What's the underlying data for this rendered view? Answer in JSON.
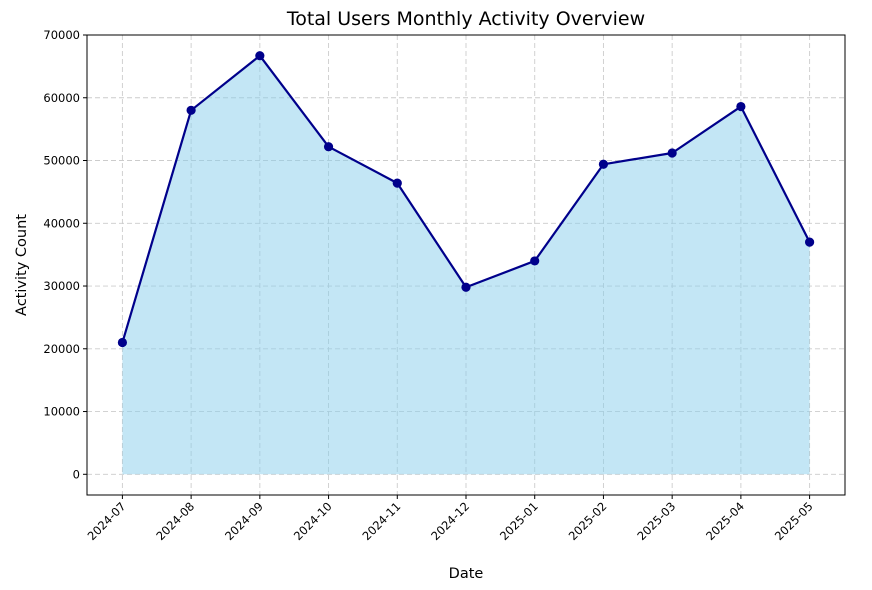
{
  "chart_data": {
    "type": "area",
    "title": "Total Users Monthly Activity Overview",
    "xlabel": "Date",
    "ylabel": "Activity Count",
    "categories": [
      "2024-07",
      "2024-08",
      "2024-09",
      "2024-10",
      "2024-11",
      "2024-12",
      "2025-01",
      "2025-02",
      "2025-03",
      "2025-04",
      "2025-05"
    ],
    "values": [
      21000,
      58000,
      66700,
      52200,
      46400,
      29800,
      34000,
      49400,
      51200,
      58600,
      37000
    ],
    "ylim": [
      -3300,
      70000
    ],
    "yticks": [
      0,
      10000,
      20000,
      30000,
      40000,
      50000,
      60000,
      70000
    ],
    "ytick_labels": [
      "0",
      "10000",
      "20000",
      "30000",
      "40000",
      "50000",
      "60000",
      "70000"
    ],
    "grid": true,
    "colors": {
      "line": "#00008b",
      "marker": "#00008b",
      "fill": "#87ceeb",
      "grid": "#cccccc"
    }
  }
}
